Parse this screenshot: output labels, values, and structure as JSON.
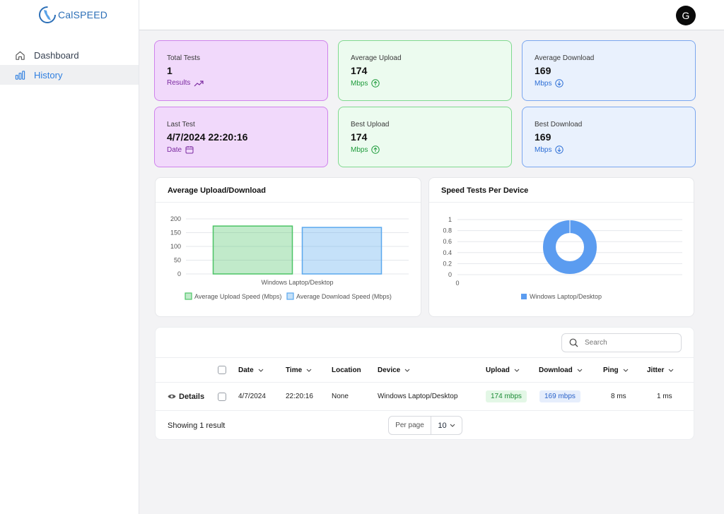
{
  "app": {
    "logo_text": "CalSPEED"
  },
  "header": {
    "avatar_initial": "G"
  },
  "sidebar": {
    "items": [
      {
        "label": "Dashboard",
        "icon": "home-icon",
        "active": false
      },
      {
        "label": "History",
        "icon": "bar-chart-icon",
        "active": true
      }
    ]
  },
  "stats": {
    "total_tests": {
      "label": "Total Tests",
      "value": "1",
      "sub": "Results",
      "icon": "trending-up-icon"
    },
    "avg_upload": {
      "label": "Average Upload",
      "value": "174",
      "sub": "Mbps",
      "icon": "arrow-up-circle-icon"
    },
    "avg_download": {
      "label": "Average Download",
      "value": "169",
      "sub": "Mbps",
      "icon": "arrow-down-circle-icon"
    },
    "last_test": {
      "label": "Last Test",
      "value": "4/7/2024 22:20:16",
      "sub": "Date",
      "icon": "calendar-icon"
    },
    "best_upload": {
      "label": "Best Upload",
      "value": "174",
      "sub": "Mbps",
      "icon": "arrow-up-circle-icon"
    },
    "best_download": {
      "label": "Best Download",
      "value": "169",
      "sub": "Mbps",
      "icon": "arrow-down-circle-icon"
    }
  },
  "charts": {
    "bar_title": "Average Upload/Download",
    "donut_title": "Speed Tests Per Device"
  },
  "chart_data": [
    {
      "type": "bar",
      "title": "Average Upload/Download",
      "categories": [
        "Windows Laptop/Desktop"
      ],
      "series": [
        {
          "name": "Average Upload Speed (Mbps)",
          "values": [
            174
          ],
          "color": "#4cc466"
        },
        {
          "name": "Average Download Speed (Mbps)",
          "values": [
            169
          ],
          "color": "#5aa8ee"
        }
      ],
      "ylim": [
        0,
        200
      ],
      "yticks": [
        "200",
        "150",
        "100",
        "50",
        "0"
      ],
      "grid": true,
      "legend": "bottom"
    },
    {
      "type": "pie",
      "title": "Speed Tests Per Device",
      "labels": [
        "Windows Laptop/Desktop"
      ],
      "values": [
        1
      ],
      "color": "#5b9cf0",
      "yticks": [
        "1",
        "0.8",
        "0.6",
        "0.4",
        "0.2",
        "0"
      ],
      "xtick": "0",
      "legend": "bottom"
    }
  ],
  "table": {
    "search_placeholder": "Search",
    "columns": {
      "date": "Date",
      "time": "Time",
      "location": "Location",
      "device": "Device",
      "upload": "Upload",
      "download": "Download",
      "ping": "Ping",
      "jitter": "Jitter"
    },
    "rows": [
      {
        "details": "Details",
        "date": "4/7/2024",
        "time": "22:20:16",
        "location": "None",
        "device": "Windows Laptop/Desktop",
        "upload": "174 mbps",
        "download": "169 mbps",
        "ping": "8 ms",
        "jitter": "1 ms"
      }
    ],
    "footer": {
      "showing": "Showing 1 result",
      "per_page_label": "Per page",
      "per_page_value": "10"
    }
  }
}
